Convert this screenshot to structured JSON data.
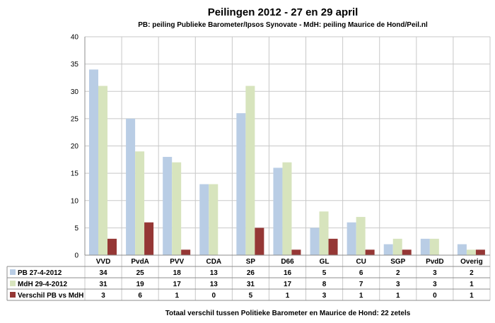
{
  "chart_data": {
    "type": "bar",
    "title": "Peilingen 2012 - 27 en 29 april",
    "subtitle": "PB: peiling Publieke Barometer/Ipsos Synovate - MdH: peiling Maurice de Hond/Peil.nl",
    "categories": [
      "VVD",
      "PvdA",
      "PVV",
      "CDA",
      "SP",
      "D66",
      "GL",
      "CU",
      "SGP",
      "PvdD",
      "Overig"
    ],
    "series": [
      {
        "name": "PB 27-4-2012",
        "color": "#b9cde5",
        "values": [
          34,
          25,
          18,
          13,
          26,
          16,
          5,
          6,
          2,
          3,
          2
        ]
      },
      {
        "name": "MdH 29-4-2012",
        "color": "#d7e4bd",
        "values": [
          31,
          19,
          17,
          13,
          31,
          17,
          8,
          7,
          3,
          3,
          1
        ]
      },
      {
        "name": "Verschil PB vs MdH",
        "color": "#953735",
        "values": [
          3,
          6,
          1,
          0,
          5,
          1,
          3,
          1,
          1,
          0,
          1
        ]
      }
    ],
    "ylim": [
      0,
      40
    ],
    "yticks": [
      0,
      5,
      10,
      15,
      20,
      25,
      30,
      35,
      40
    ],
    "grid": true,
    "legend": "data table",
    "footer": "Totaal verschil  tussen Politieke Barometer en Maurice de Hond:  22 zetels"
  }
}
